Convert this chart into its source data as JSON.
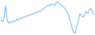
{
  "values": [
    30,
    28,
    35,
    55,
    30,
    25,
    28,
    26,
    30,
    28,
    32,
    30,
    34,
    33,
    36,
    35,
    38,
    37,
    40,
    39,
    42,
    41,
    44,
    43,
    46,
    45,
    48,
    50,
    52,
    54,
    56,
    55,
    58,
    57,
    55,
    60,
    62,
    58,
    56,
    54,
    52,
    48,
    44,
    38,
    28,
    18,
    10,
    8,
    20,
    30,
    42,
    38,
    35,
    40,
    45,
    42,
    48,
    50,
    44,
    40
  ],
  "line_color": "#4daee8",
  "linewidth": 0.6,
  "background_color": "#ffffff"
}
